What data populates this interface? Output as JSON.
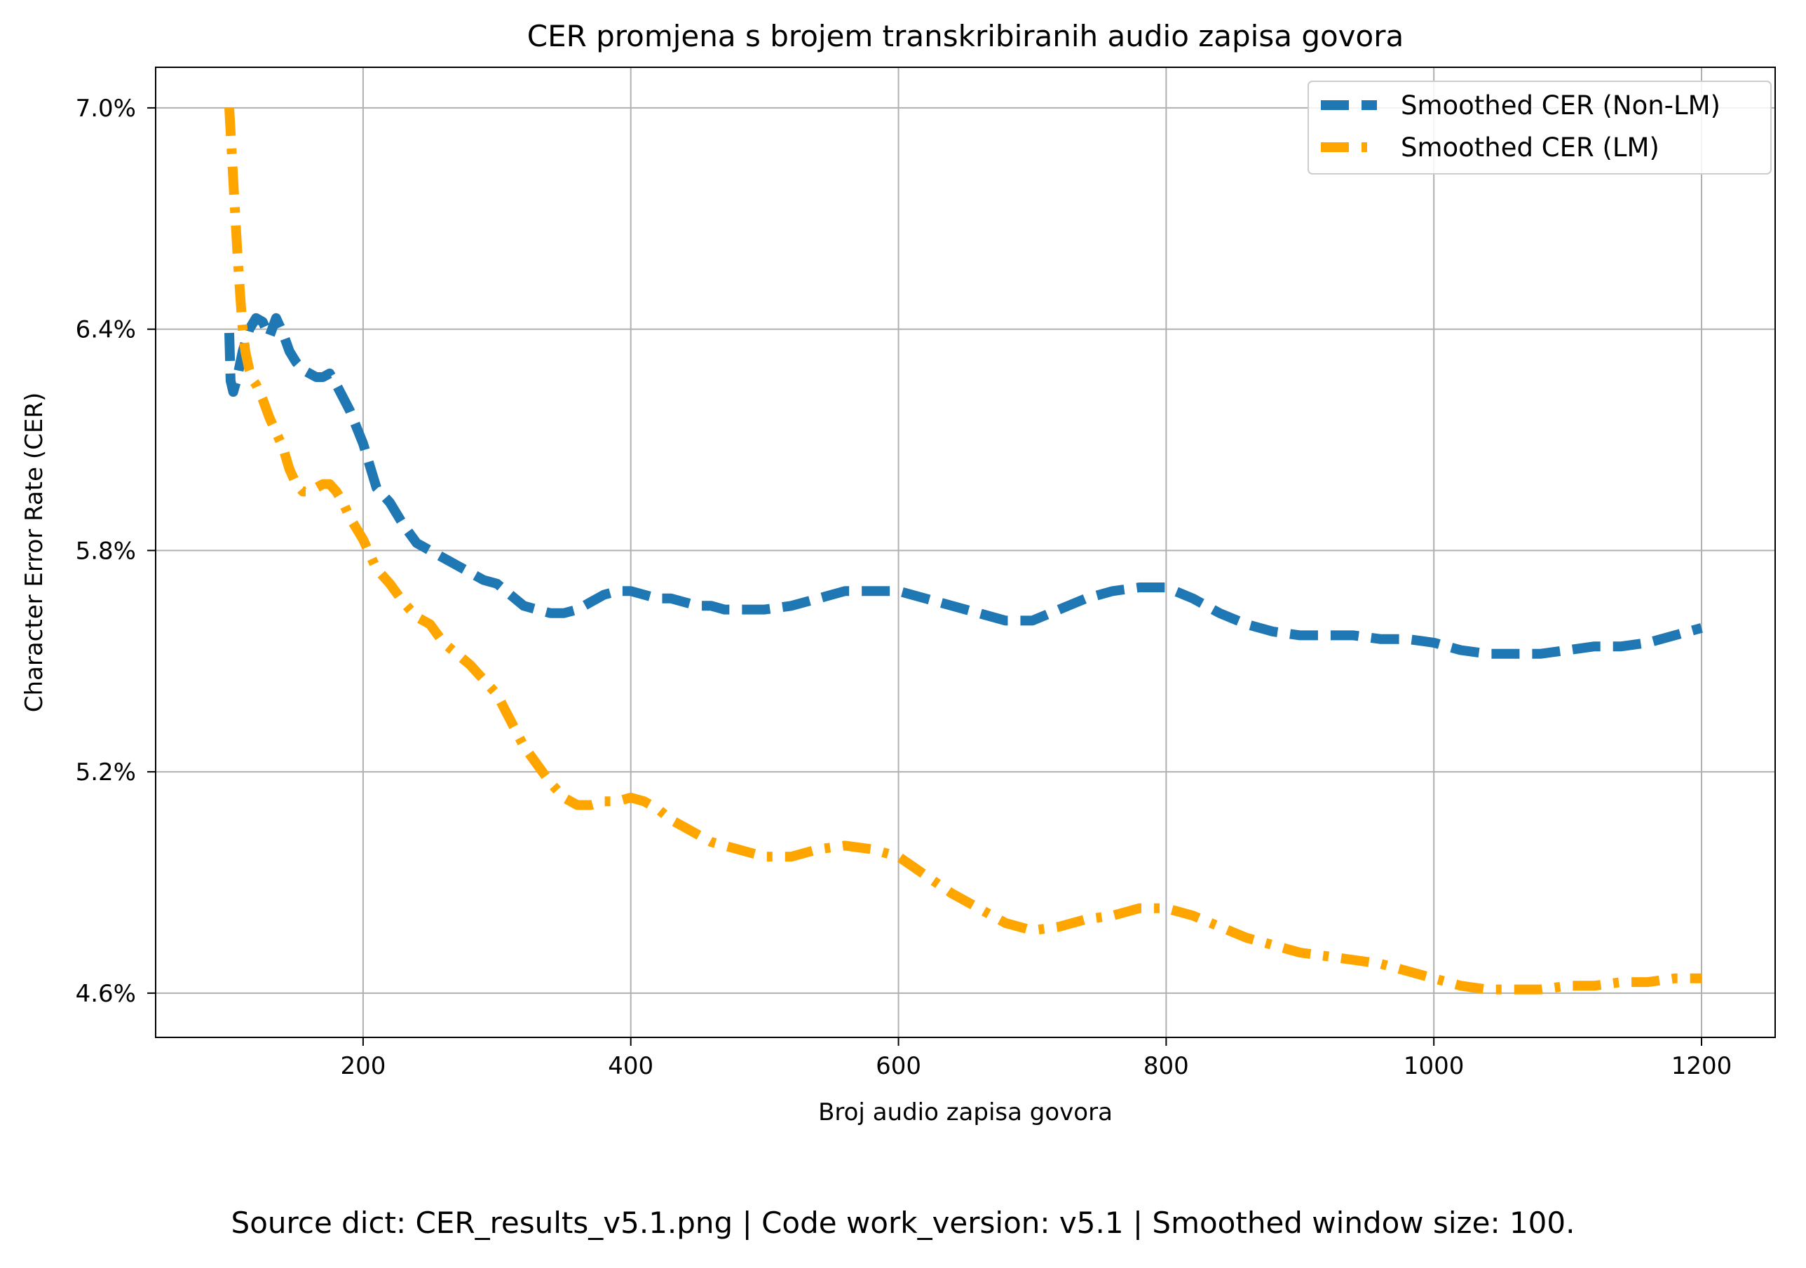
{
  "caption": "Source dict: CER_results_v5.1.png | Code work_version: v5.1 | Smoothed window size: 100.",
  "chart_data": {
    "type": "line",
    "title": "CER promjena s brojem transkribiranih audio zapisa govora",
    "xlabel": "Broj audio zapisa govora",
    "ylabel": "Character Error Rate (CER)",
    "xlim": [
      45,
      1255
    ],
    "ylim": [
      0.0448,
      0.0711
    ],
    "xticks": [
      200,
      400,
      600,
      800,
      1000,
      1200
    ],
    "xtick_labels": [
      "200",
      "400",
      "600",
      "800",
      "1000",
      "1200"
    ],
    "yticks": [
      0.046,
      0.052,
      0.058,
      0.064,
      0.07
    ],
    "ytick_labels": [
      "4.6%",
      "5.2%",
      "5.8%",
      "6.4%",
      "7.0%"
    ],
    "grid": true,
    "legend_position": "top-right",
    "series": [
      {
        "name": "Smoothed CER (Non-LM)",
        "color": "#1f77b4",
        "linestyle": "dashed",
        "x": [
          100,
          101,
          103,
          106,
          110,
          115,
          120,
          125,
          130,
          135,
          140,
          145,
          150,
          155,
          160,
          165,
          170,
          175,
          180,
          190,
          200,
          210,
          220,
          230,
          240,
          250,
          260,
          270,
          280,
          290,
          300,
          310,
          320,
          330,
          340,
          350,
          360,
          370,
          380,
          390,
          400,
          410,
          420,
          430,
          440,
          450,
          460,
          470,
          480,
          490,
          500,
          520,
          540,
          560,
          580,
          600,
          620,
          640,
          660,
          680,
          700,
          720,
          740,
          760,
          780,
          800,
          820,
          840,
          860,
          880,
          900,
          920,
          940,
          960,
          980,
          1000,
          1020,
          1040,
          1060,
          1080,
          1100,
          1120,
          1140,
          1160,
          1180,
          1200
        ],
        "y": [
          0.0639,
          0.0626,
          0.0623,
          0.0627,
          0.0634,
          0.064,
          0.0643,
          0.0642,
          0.0638,
          0.0643,
          0.0639,
          0.0634,
          0.0631,
          0.0629,
          0.0628,
          0.0627,
          0.0627,
          0.0628,
          0.0625,
          0.0618,
          0.0609,
          0.0597,
          0.0593,
          0.0587,
          0.0582,
          0.058,
          0.0578,
          0.0576,
          0.0574,
          0.0572,
          0.0571,
          0.0568,
          0.0565,
          0.0564,
          0.0563,
          0.0563,
          0.0564,
          0.0566,
          0.0568,
          0.0569,
          0.0569,
          0.0568,
          0.0567,
          0.0567,
          0.0566,
          0.0565,
          0.0565,
          0.0564,
          0.0564,
          0.0564,
          0.0564,
          0.0565,
          0.0567,
          0.0569,
          0.0569,
          0.0569,
          0.0567,
          0.0565,
          0.0563,
          0.0561,
          0.0561,
          0.0564,
          0.0567,
          0.0569,
          0.057,
          0.057,
          0.0567,
          0.0563,
          0.056,
          0.0558,
          0.0557,
          0.0557,
          0.0557,
          0.0556,
          0.0556,
          0.0555,
          0.0553,
          0.0552,
          0.0552,
          0.0552,
          0.0553,
          0.0554,
          0.0554,
          0.0555,
          0.0557,
          0.0559
        ]
      },
      {
        "name": "Smoothed CER (LM)",
        "color": "#ffa500",
        "linestyle": "dashdot",
        "x": [
          100,
          102,
          104,
          106,
          108,
          110,
          112,
          115,
          118,
          120,
          125,
          130,
          135,
          140,
          145,
          150,
          155,
          160,
          165,
          170,
          175,
          180,
          185,
          190,
          200,
          210,
          220,
          230,
          240,
          250,
          260,
          270,
          280,
          290,
          300,
          310,
          320,
          330,
          340,
          350,
          360,
          370,
          380,
          390,
          400,
          410,
          420,
          430,
          440,
          450,
          460,
          470,
          480,
          490,
          500,
          520,
          540,
          560,
          580,
          600,
          620,
          640,
          660,
          680,
          700,
          720,
          740,
          760,
          780,
          800,
          820,
          840,
          860,
          880,
          900,
          920,
          940,
          960,
          980,
          1000,
          1020,
          1040,
          1060,
          1080,
          1100,
          1120,
          1140,
          1160,
          1180,
          1200
        ],
        "y": [
          0.07,
          0.0687,
          0.0674,
          0.0661,
          0.065,
          0.064,
          0.0634,
          0.0629,
          0.0626,
          0.0625,
          0.0621,
          0.0616,
          0.0612,
          0.0608,
          0.0602,
          0.0598,
          0.0596,
          0.0596,
          0.0597,
          0.0598,
          0.0598,
          0.0596,
          0.0593,
          0.0589,
          0.0583,
          0.0575,
          0.0571,
          0.0566,
          0.0562,
          0.056,
          0.0555,
          0.0552,
          0.0549,
          0.0545,
          0.0541,
          0.0534,
          0.0527,
          0.0522,
          0.0517,
          0.0513,
          0.0511,
          0.0511,
          0.0512,
          0.0512,
          0.0513,
          0.0512,
          0.051,
          0.0507,
          0.0505,
          0.0503,
          0.0501,
          0.05,
          0.0499,
          0.0498,
          0.0497,
          0.0497,
          0.0499,
          0.05,
          0.0499,
          0.0497,
          0.0492,
          0.0487,
          0.0483,
          0.0479,
          0.0477,
          0.0478,
          0.048,
          0.0481,
          0.0483,
          0.0483,
          0.0481,
          0.0478,
          0.0475,
          0.0473,
          0.0471,
          0.047,
          0.0469,
          0.0468,
          0.0466,
          0.0464,
          0.0462,
          0.0461,
          0.0461,
          0.0461,
          0.0462,
          0.0462,
          0.0463,
          0.0463,
          0.0464,
          0.0464
        ]
      }
    ]
  }
}
